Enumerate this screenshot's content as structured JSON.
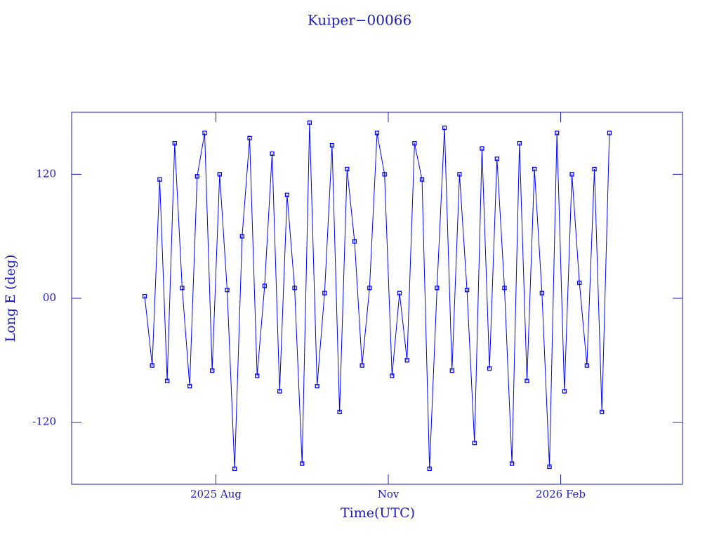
{
  "chart_data": {
    "type": "line",
    "title": "Kuiper−00066",
    "x_label": "Time(UTC)",
    "y_label": "Long E (deg)",
    "x": [
      "2025-06-24",
      "2025-06-28",
      "2025-07-02",
      "2025-07-06",
      "2025-07-10",
      "2025-07-14",
      "2025-07-18",
      "2025-07-22",
      "2025-07-26",
      "2025-07-30",
      "2025-08-03",
      "2025-08-07",
      "2025-08-11",
      "2025-08-15",
      "2025-08-19",
      "2025-08-23",
      "2025-08-27",
      "2025-08-31",
      "2025-09-04",
      "2025-09-08",
      "2025-09-12",
      "2025-09-16",
      "2025-09-20",
      "2025-09-24",
      "2025-09-28",
      "2025-10-02",
      "2025-10-06",
      "2025-10-10",
      "2025-10-14",
      "2025-10-18",
      "2025-10-22",
      "2025-10-26",
      "2025-10-30",
      "2025-11-03",
      "2025-11-07",
      "2025-11-11",
      "2025-11-15",
      "2025-11-19",
      "2025-11-23",
      "2025-11-27",
      "2025-12-01",
      "2025-12-05",
      "2025-12-09",
      "2025-12-13",
      "2025-12-17",
      "2025-12-21",
      "2025-12-25",
      "2025-12-29",
      "2026-01-02",
      "2026-01-06",
      "2026-01-10",
      "2026-01-14",
      "2026-01-18",
      "2026-01-22",
      "2026-01-26",
      "2026-01-30",
      "2026-02-03",
      "2026-02-07",
      "2026-02-11",
      "2026-02-15",
      "2026-02-19",
      "2026-02-23",
      "2026-02-27"
    ],
    "series": [
      {
        "color": "#0000ff",
        "values": [
          2,
          -65,
          115,
          -80,
          150,
          10,
          -85,
          118,
          160,
          -70,
          120,
          8,
          -165,
          60,
          155,
          -75,
          12,
          140,
          -90,
          100,
          10,
          -160,
          170,
          -85,
          5,
          148,
          -110,
          125,
          55,
          -65,
          10,
          160,
          120,
          -75,
          5,
          -60,
          150,
          115,
          -165,
          10,
          165,
          -70,
          120,
          8,
          -140,
          145,
          -68,
          135,
          10,
          -160,
          150,
          -80,
          125,
          5,
          -163,
          160,
          -90,
          120,
          15,
          -65,
          125,
          -110,
          160
        ]
      }
    ],
    "xlim": [
      "2025-05-16",
      "2026-04-07"
    ],
    "xticks": [
      {
        "value": "2025-08-01",
        "label": "2025 Aug"
      },
      {
        "value": "2025-11-01",
        "label": "Nov"
      },
      {
        "value": "2026-02-01",
        "label": "2026 Feb"
      }
    ],
    "ylim": [
      -180,
      180
    ],
    "yticks": [
      -120,
      {
        "value": 0,
        "label": "00"
      },
      120
    ],
    "markers": true
  }
}
